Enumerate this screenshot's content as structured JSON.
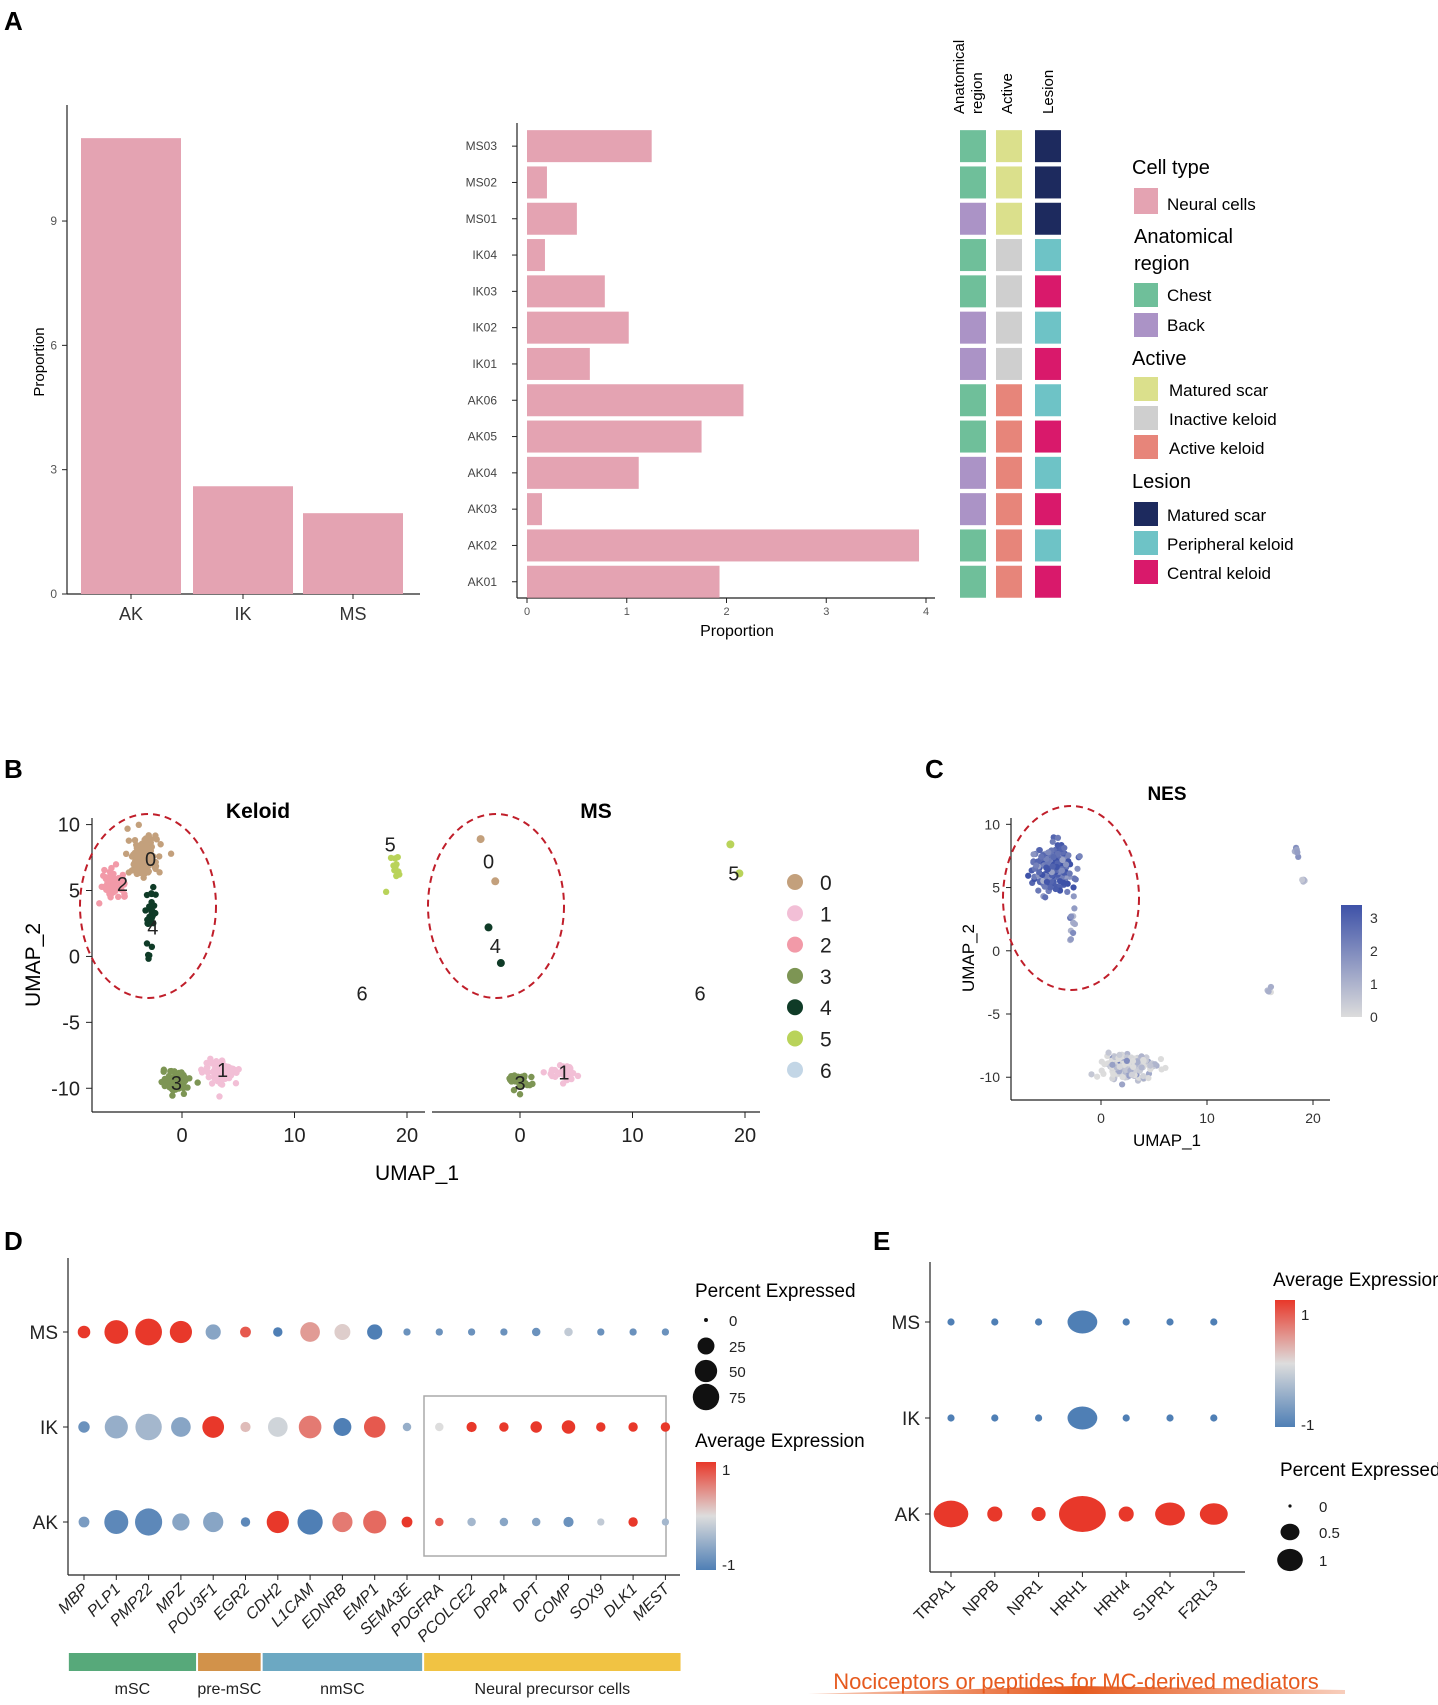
{
  "panels": {
    "a": "A",
    "b": "B",
    "c": "C",
    "d": "D",
    "e": "E"
  },
  "colors": {
    "neural": "#e4a3b2",
    "chest": "#6fbf9a",
    "back": "#ab93c6",
    "matured": "#dbe08c",
    "inactive": "#cfcfcf",
    "active": "#e7857a",
    "lesion_ms": "#1d2a5e",
    "lesion_pk": "#6ec3c6",
    "lesion_ck": "#d9196b",
    "expr_high": "#e8382a",
    "expr_low": "#4f7fb5",
    "ms_sc": "#57a97a",
    "pre_msc": "#d2924a",
    "nm_sc": "#6ca8c2",
    "npc": "#f1c343",
    "clusters": [
      "#c3a07c",
      "#f2bfd6",
      "#f29aa8",
      "#7d9554",
      "#0f3b27",
      "#b9d35a",
      "#c3d6e6"
    ],
    "ellipse": "#c01e2a",
    "nes_high": "#3e52a8",
    "nes_low": "#dcdcdc"
  },
  "chart_data": [
    {
      "id": "A1",
      "type": "bar",
      "categories": [
        "AK",
        "IK",
        "MS"
      ],
      "values": [
        11.0,
        2.6,
        1.95
      ],
      "ylabel": "Proportion",
      "xlabel": "",
      "yticks": [
        0,
        3,
        6,
        9
      ],
      "ylim": [
        0,
        11.8
      ]
    },
    {
      "id": "A2",
      "type": "bar",
      "orientation": "horizontal",
      "categories": [
        "MS03",
        "MS02",
        "MS01",
        "IK04",
        "IK03",
        "IK02",
        "IK01",
        "AK06",
        "AK05",
        "AK04",
        "AK03",
        "AK02",
        "AK01"
      ],
      "values": [
        1.25,
        0.2,
        0.5,
        0.18,
        0.78,
        1.02,
        0.63,
        2.17,
        1.75,
        1.12,
        0.15,
        3.93,
        1.93
      ],
      "xlabel": "Proportion",
      "xticks": [
        0,
        1,
        2,
        3,
        4
      ],
      "xlim": [
        0,
        4.05
      ],
      "annotation_headers": [
        "Anatomical region",
        "Active",
        "Lesion"
      ],
      "annotations": {
        "region": [
          "Chest",
          "Chest",
          "Back",
          "Chest",
          "Chest",
          "Back",
          "Back",
          "Chest",
          "Chest",
          "Back",
          "Back",
          "Chest",
          "Chest"
        ],
        "active": [
          "Matured scar",
          "Matured scar",
          "Matured scar",
          "Inactive keloid",
          "Inactive keloid",
          "Inactive keloid",
          "Inactive keloid",
          "Active keloid",
          "Active keloid",
          "Active keloid",
          "Active keloid",
          "Active keloid",
          "Active keloid"
        ],
        "lesion": [
          "Matured scar",
          "Matured scar",
          "Matured scar",
          "Peripheral keloid",
          "Central keloid",
          "Peripheral keloid",
          "Central keloid",
          "Peripheral keloid",
          "Central keloid",
          "Peripheral keloid",
          "Central keloid",
          "Peripheral keloid",
          "Central keloid"
        ]
      },
      "legend": {
        "celltype_title": "Cell type",
        "celltype": [
          "Neural cells"
        ],
        "region_title_1": "Anatomical",
        "region_title_2": "region",
        "region": [
          "Chest",
          "Back"
        ],
        "active_title": "Active",
        "active": [
          "Matured scar",
          "Inactive keloid",
          "Active keloid"
        ],
        "lesion_title": "Lesion",
        "lesion": [
          "Matured scar",
          "Peripheral keloid",
          "Central keloid"
        ]
      }
    },
    {
      "id": "B",
      "type": "scatter",
      "facets": [
        "Keloid",
        "MS"
      ],
      "xlabel": "UMAP_1",
      "ylabel": "UMAP_2",
      "xticks": [
        0,
        10,
        20
      ],
      "yticks": [
        -10,
        -5,
        0,
        5,
        10
      ],
      "xlim": [
        -8,
        22
      ],
      "ylim": [
        -11.8,
        10.5
      ],
      "clusters": [
        "0",
        "1",
        "2",
        "3",
        "4",
        "5",
        "6"
      ],
      "keloid": [
        {
          "cluster": "0",
          "cx": -3.5,
          "cy": 7.5,
          "sx": 1.3,
          "sy": 1.5,
          "n": 160
        },
        {
          "cluster": "2",
          "cx": -6.0,
          "cy": 5.6,
          "sx": 1.0,
          "sy": 0.9,
          "n": 70
        },
        {
          "cluster": "4",
          "cx": -2.8,
          "cy": 3.0,
          "sx": 0.5,
          "sy": 2.8,
          "n": 28
        },
        {
          "cluster": "5",
          "cx": 19.0,
          "cy": 6.6,
          "sx": 0.4,
          "sy": 1.4,
          "n": 12
        },
        {
          "cluster": "3",
          "cx": -0.5,
          "cy": -9.5,
          "sx": 1.2,
          "sy": 0.8,
          "n": 80
        },
        {
          "cluster": "1",
          "cx": 3.5,
          "cy": -8.8,
          "sx": 1.5,
          "sy": 0.9,
          "n": 90
        }
      ],
      "keloid_labels": [
        {
          "text": "0",
          "x": -2.8,
          "y": 7.4
        },
        {
          "text": "2",
          "x": -5.3,
          "y": 5.5
        },
        {
          "text": "4",
          "x": -2.6,
          "y": 2.2
        },
        {
          "text": "5",
          "x": 18.5,
          "y": 8.5
        },
        {
          "text": "6",
          "x": 16.0,
          "y": -2.8
        },
        {
          "text": "3",
          "x": -0.5,
          "y": -9.6
        },
        {
          "text": "1",
          "x": 3.6,
          "y": -8.6
        }
      ],
      "ms_points": [
        {
          "cluster": "0",
          "x": -3.5,
          "y": 8.9
        },
        {
          "cluster": "0",
          "x": -2.2,
          "y": 5.7
        },
        {
          "cluster": "4",
          "x": -2.8,
          "y": 2.2
        },
        {
          "cluster": "4",
          "x": -1.7,
          "y": -0.5
        },
        {
          "cluster": "5",
          "x": 18.7,
          "y": 8.5
        },
        {
          "cluster": "5",
          "x": 19.5,
          "y": 6.3
        }
      ],
      "ms_blobs": [
        {
          "cluster": "3",
          "cx": 0.0,
          "cy": -9.5,
          "sx": 1.1,
          "sy": 0.6,
          "n": 40
        },
        {
          "cluster": "1",
          "cx": 3.7,
          "cy": -8.8,
          "sx": 1.3,
          "sy": 0.7,
          "n": 45
        }
      ],
      "ms_labels": [
        {
          "text": "0",
          "x": -2.8,
          "y": 7.2
        },
        {
          "text": "4",
          "x": -2.2,
          "y": 0.8
        },
        {
          "text": "5",
          "x": 19.0,
          "y": 6.3
        },
        {
          "text": "6",
          "x": 16.0,
          "y": -2.8
        },
        {
          "text": "3",
          "x": 0.0,
          "y": -9.6
        },
        {
          "text": "1",
          "x": 3.9,
          "y": -8.8
        }
      ]
    },
    {
      "id": "C",
      "type": "scatter",
      "title": "NES",
      "xlabel": "UMAP_1",
      "ylabel": "UMAP_2",
      "xticks": [
        0,
        10,
        20
      ],
      "yticks": [
        -10,
        -5,
        0,
        5,
        10
      ],
      "xlim": [
        -8.5,
        22
      ],
      "ylim": [
        -11.8,
        10.5
      ],
      "colorbar_ticks": [
        0,
        1,
        2,
        3
      ],
      "colorbar_range": [
        0,
        3.4
      ]
    },
    {
      "id": "D",
      "type": "dotplot",
      "genes": [
        "MBP",
        "PLP1",
        "PMP22",
        "MPZ",
        "POU3F1",
        "EGR2",
        "CDH2",
        "L1CAM",
        "EDNRB",
        "EMP1",
        "SEMA3E",
        "PDGFRA",
        "PCOLCE2",
        "DPP4",
        "DPT",
        "COMP",
        "SOX9",
        "DLK1",
        "MEST"
      ],
      "groups": [
        "MS",
        "IK",
        "AK"
      ],
      "pct": {
        "MS": [
          8,
          45,
          60,
          38,
          14,
          5,
          3,
          28,
          16,
          14,
          1,
          1,
          1,
          1,
          2,
          2,
          1,
          1,
          1
        ],
        "IK": [
          6,
          42,
          58,
          28,
          36,
          4,
          28,
          40,
          22,
          35,
          2,
          2,
          4,
          3,
          6,
          10,
          3,
          3,
          3
        ],
        "AK": [
          5,
          46,
          62,
          20,
          30,
          3,
          38,
          52,
          30,
          42,
          5,
          2,
          2,
          2,
          2,
          4,
          1,
          3,
          1
        ]
      },
      "avg": {
        "MS": [
          1.0,
          1.0,
          1.0,
          1.0,
          -0.6,
          0.8,
          -1.0,
          0.4,
          0.1,
          -1.0,
          -0.8,
          -0.8,
          -0.8,
          -0.8,
          -0.8,
          -0.2,
          -0.8,
          -0.8,
          -0.8
        ],
        "IK": [
          -0.8,
          -0.5,
          -0.4,
          -0.6,
          1.0,
          0.2,
          -0.1,
          0.6,
          -1.0,
          0.8,
          -0.5,
          0.0,
          1.0,
          1.0,
          1.0,
          1.0,
          1.0,
          1.0,
          1.0
        ],
        "AK": [
          -0.7,
          -0.9,
          -0.9,
          -0.6,
          -0.6,
          -0.9,
          1.0,
          -1.0,
          0.6,
          0.7,
          1.0,
          0.8,
          -0.4,
          -0.6,
          -0.6,
          -0.8,
          -0.2,
          1.0,
          -0.4
        ]
      },
      "size_legend_title": "Percent Expressed",
      "size_legend": [
        0,
        25,
        50,
        75
      ],
      "color_legend_title": "Average Expression",
      "color_legend_ticks": [
        1,
        -1
      ],
      "groups_bar": [
        {
          "label": "mSC",
          "span": [
            0,
            3
          ],
          "color_key": "ms_sc"
        },
        {
          "label": "pre-mSC",
          "span": [
            4,
            5
          ],
          "color_key": "pre_msc"
        },
        {
          "label": "nmSC",
          "span": [
            6,
            10
          ],
          "color_key": "nm_sc"
        },
        {
          "label": "Neural precursor cells",
          "span": [
            11,
            18
          ],
          "color_key": "npc"
        }
      ]
    },
    {
      "id": "E",
      "type": "dotplot",
      "genes": [
        "TRPA1",
        "NPPB",
        "NPR1",
        "HRH1",
        "HRH4",
        "S1PR1",
        "F2RL3"
      ],
      "groups": [
        "MS",
        "IK",
        "AK"
      ],
      "pct": {
        "MS": [
          0.01,
          0.01,
          0.01,
          0.35,
          0.01,
          0.01,
          0.01
        ],
        "IK": [
          0.01,
          0.01,
          0.01,
          0.35,
          0.01,
          0.01,
          0.01
        ],
        "AK": [
          0.5,
          0.12,
          0.1,
          1.0,
          0.12,
          0.35,
          0.3
        ]
      },
      "avg": {
        "MS": [
          -1,
          -1,
          -1,
          -1,
          -1,
          -1,
          -1
        ],
        "IK": [
          -1,
          -1,
          -1,
          -1,
          -1,
          -1,
          -1
        ],
        "AK": [
          1,
          1,
          1,
          1,
          1,
          1,
          1
        ]
      },
      "color_legend_title": "Average Expression",
      "color_legend_ticks": [
        1,
        -1
      ],
      "size_legend_title": "Percent Expressed",
      "size_legend": [
        0.0,
        0.5,
        1.0
      ],
      "footer": "Nociceptors or peptides for MC-derived mediators"
    }
  ]
}
